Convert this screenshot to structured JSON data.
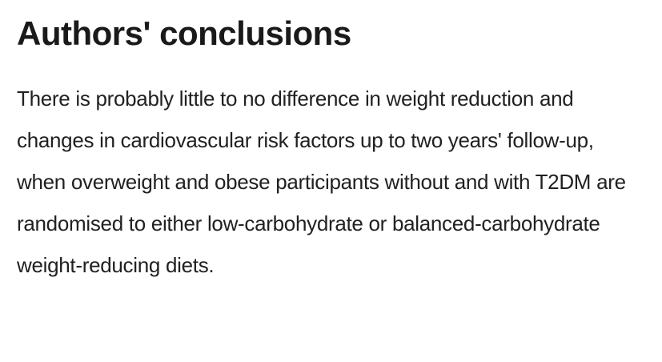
{
  "page": {
    "background_color": "#ffffff",
    "heading_color": "#1a1a1a",
    "text_color": "#212121",
    "section": {
      "heading": "Authors' conclusions",
      "paragraph": "There is probably little to no difference in weight reduction and changes in cardiovascular risk factors up to two years' follow-up, when overweight and obese participants without and with T2DM are randomised to either low-carbohydrate or balanced-carbohydrate weight-reducing diets."
    }
  }
}
